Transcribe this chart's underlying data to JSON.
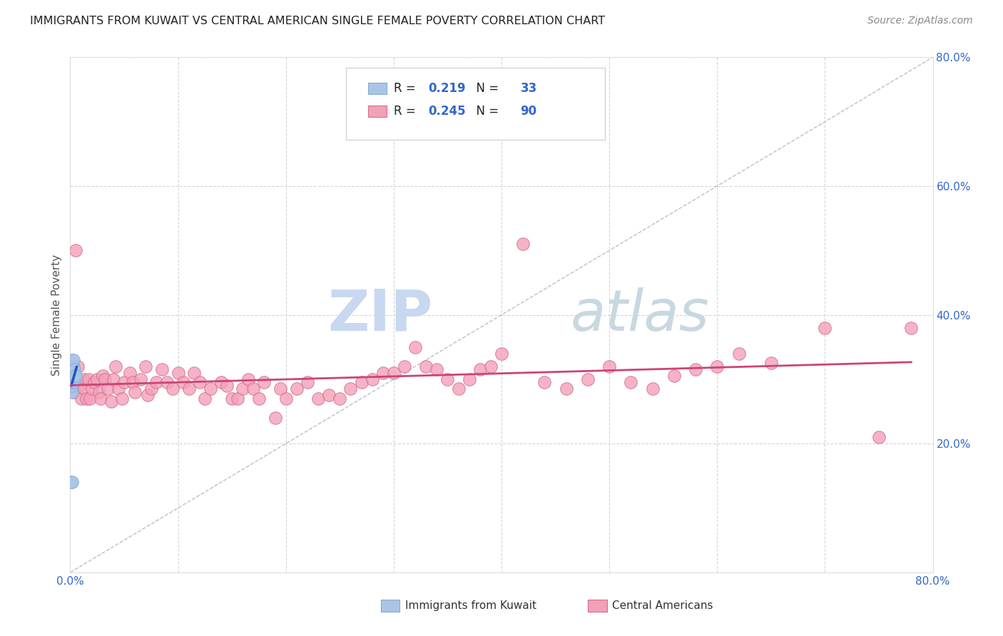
{
  "title": "IMMIGRANTS FROM KUWAIT VS CENTRAL AMERICAN SINGLE FEMALE POVERTY CORRELATION CHART",
  "source": "Source: ZipAtlas.com",
  "ylabel": "Single Female Poverty",
  "xlim": [
    0,
    0.8
  ],
  "ylim": [
    0,
    0.8
  ],
  "r1": "0.219",
  "n1": "33",
  "r2": "0.245",
  "n2": "90",
  "background_color": "#ffffff",
  "grid_color": "#cccccc",
  "scatter1_color": "#aac4e8",
  "scatter1_edge": "#88aacc",
  "scatter2_color": "#f4a0b8",
  "scatter2_edge": "#d07090",
  "line1_color": "#2255bb",
  "line2_color": "#cc4477",
  "diagonal_color": "#aabbcc",
  "watermark_zip": "ZIP",
  "watermark_atlas": "atlas",
  "watermark_color_zip": "#c8d8f0",
  "watermark_color_atlas": "#c8d8e0",
  "title_color": "#222222",
  "source_color": "#888888",
  "tick_color": "#3366cc",
  "ylabel_color": "#555555",
  "legend_border": "#cccccc",
  "kuwait_x": [
    0.001,
    0.001,
    0.001,
    0.001,
    0.001,
    0.001,
    0.001,
    0.001,
    0.001,
    0.001,
    0.001,
    0.002,
    0.002,
    0.002,
    0.002,
    0.002,
    0.002,
    0.002,
    0.002,
    0.002,
    0.002,
    0.002,
    0.003,
    0.003,
    0.003,
    0.003,
    0.003,
    0.003,
    0.003,
    0.004,
    0.004,
    0.004,
    0.005
  ],
  "kuwait_y": [
    0.285,
    0.295,
    0.3,
    0.305,
    0.305,
    0.31,
    0.31,
    0.315,
    0.32,
    0.325,
    0.14,
    0.14,
    0.28,
    0.29,
    0.295,
    0.3,
    0.3,
    0.305,
    0.315,
    0.32,
    0.325,
    0.33,
    0.295,
    0.3,
    0.3,
    0.305,
    0.31,
    0.32,
    0.33,
    0.3,
    0.305,
    0.315,
    0.305
  ],
  "central_x": [
    0.002,
    0.004,
    0.005,
    0.007,
    0.008,
    0.01,
    0.012,
    0.013,
    0.015,
    0.017,
    0.018,
    0.02,
    0.022,
    0.025,
    0.027,
    0.028,
    0.03,
    0.032,
    0.035,
    0.038,
    0.04,
    0.042,
    0.045,
    0.048,
    0.05,
    0.055,
    0.058,
    0.06,
    0.065,
    0.07,
    0.072,
    0.075,
    0.08,
    0.085,
    0.09,
    0.095,
    0.1,
    0.105,
    0.11,
    0.115,
    0.12,
    0.125,
    0.13,
    0.14,
    0.145,
    0.15,
    0.155,
    0.16,
    0.165,
    0.17,
    0.175,
    0.18,
    0.19,
    0.195,
    0.2,
    0.21,
    0.22,
    0.23,
    0.24,
    0.25,
    0.26,
    0.27,
    0.28,
    0.29,
    0.3,
    0.31,
    0.32,
    0.33,
    0.34,
    0.35,
    0.36,
    0.37,
    0.38,
    0.39,
    0.4,
    0.42,
    0.44,
    0.46,
    0.48,
    0.5,
    0.52,
    0.54,
    0.56,
    0.58,
    0.6,
    0.62,
    0.65,
    0.7,
    0.75,
    0.78
  ],
  "central_y": [
    0.3,
    0.28,
    0.5,
    0.32,
    0.29,
    0.27,
    0.3,
    0.285,
    0.27,
    0.3,
    0.27,
    0.285,
    0.295,
    0.3,
    0.28,
    0.27,
    0.305,
    0.3,
    0.285,
    0.265,
    0.3,
    0.32,
    0.285,
    0.27,
    0.295,
    0.31,
    0.295,
    0.28,
    0.3,
    0.32,
    0.275,
    0.285,
    0.295,
    0.315,
    0.295,
    0.285,
    0.31,
    0.295,
    0.285,
    0.31,
    0.295,
    0.27,
    0.285,
    0.295,
    0.29,
    0.27,
    0.27,
    0.285,
    0.3,
    0.285,
    0.27,
    0.295,
    0.24,
    0.285,
    0.27,
    0.285,
    0.295,
    0.27,
    0.275,
    0.27,
    0.285,
    0.295,
    0.3,
    0.31,
    0.31,
    0.32,
    0.35,
    0.32,
    0.315,
    0.3,
    0.285,
    0.3,
    0.315,
    0.32,
    0.34,
    0.51,
    0.295,
    0.285,
    0.3,
    0.32,
    0.295,
    0.285,
    0.305,
    0.315,
    0.32,
    0.34,
    0.325,
    0.38,
    0.21,
    0.38
  ]
}
